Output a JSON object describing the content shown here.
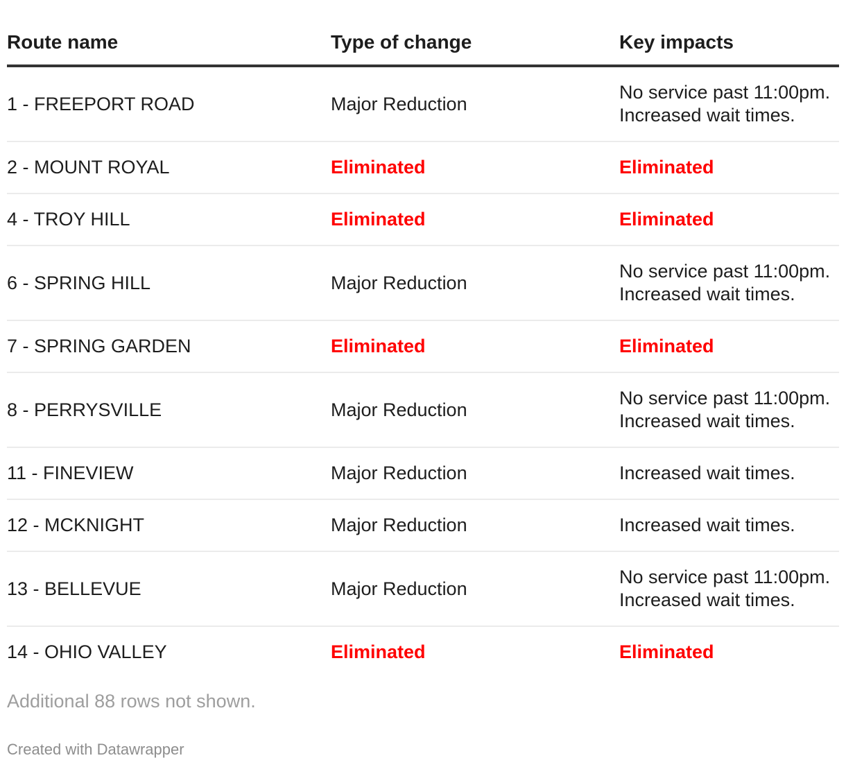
{
  "chart_data": {
    "type": "table",
    "columns": [
      "Route name",
      "Type of change",
      "Key impacts"
    ],
    "rows": [
      {
        "route": "1 - FREEPORT ROAD",
        "change": "Major Reduction",
        "impacts": [
          "No service past 11:00pm.",
          "Increased wait times."
        ],
        "eliminated": false
      },
      {
        "route": "2 - MOUNT ROYAL",
        "change": "Eliminated",
        "impacts": [
          "Eliminated"
        ],
        "eliminated": true
      },
      {
        "route": "4 - TROY HILL",
        "change": "Eliminated",
        "impacts": [
          "Eliminated"
        ],
        "eliminated": true
      },
      {
        "route": "6 - SPRING HILL",
        "change": "Major Reduction",
        "impacts": [
          "No service past 11:00pm.",
          "Increased wait times."
        ],
        "eliminated": false
      },
      {
        "route": "7 - SPRING GARDEN",
        "change": "Eliminated",
        "impacts": [
          "Eliminated"
        ],
        "eliminated": true
      },
      {
        "route": "8 - PERRYSVILLE",
        "change": "Major Reduction",
        "impacts": [
          "No service past 11:00pm.",
          "Increased wait times."
        ],
        "eliminated": false
      },
      {
        "route": "11 - FINEVIEW",
        "change": "Major Reduction",
        "impacts": [
          "Increased wait times."
        ],
        "eliminated": false
      },
      {
        "route": "12 - MCKNIGHT",
        "change": "Major Reduction",
        "impacts": [
          "Increased wait times."
        ],
        "eliminated": false
      },
      {
        "route": "13 - BELLEVUE",
        "change": "Major Reduction",
        "impacts": [
          "No service past 11:00pm.",
          "Increased wait times."
        ],
        "eliminated": false
      },
      {
        "route": "14 - OHIO VALLEY",
        "change": "Eliminated",
        "impacts": [
          "Eliminated"
        ],
        "eliminated": true
      }
    ],
    "layout_hints": {
      "grid": "horizontal row dividers only",
      "header_rule": "thick dark line under header"
    }
  },
  "footer": {
    "note": "Additional 88 rows not shown.",
    "attribution": "Created with Datawrapper"
  },
  "colors": {
    "text": "#1d1d1d",
    "eliminated_red": "#ff0000",
    "divider": "#ebebeb",
    "header_rule": "#333333",
    "note_gray": "#9e9e9e",
    "attribution_gray": "#8d8d8d",
    "background": "#ffffff"
  }
}
